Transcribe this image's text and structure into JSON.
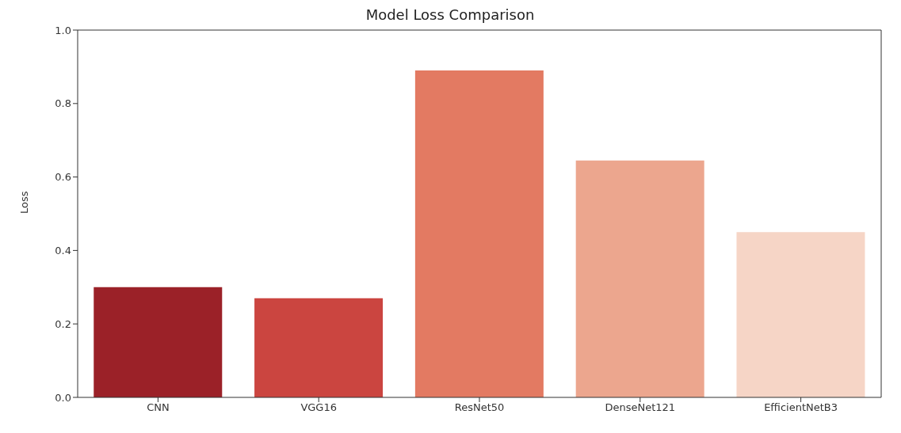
{
  "chart_data": {
    "type": "bar",
    "title": "Model Loss Comparison",
    "ylabel": "Loss",
    "categories": [
      "CNN",
      "VGG16",
      "ResNet50",
      "DenseNet121",
      "EfficientNetB3"
    ],
    "values": [
      0.3,
      0.27,
      0.89,
      0.645,
      0.45
    ],
    "colors": [
      "#9b2128",
      "#cb4540",
      "#e37a62",
      "#eca68e",
      "#f6d5c6"
    ],
    "ylim": [
      0,
      1.0
    ],
    "yticks": [
      {
        "value": 0,
        "label": "0.0"
      },
      0.2,
      0.4,
      0.6,
      0.8,
      {
        "value": 1,
        "label": "1.0"
      }
    ],
    "grid": false,
    "legend": false
  }
}
